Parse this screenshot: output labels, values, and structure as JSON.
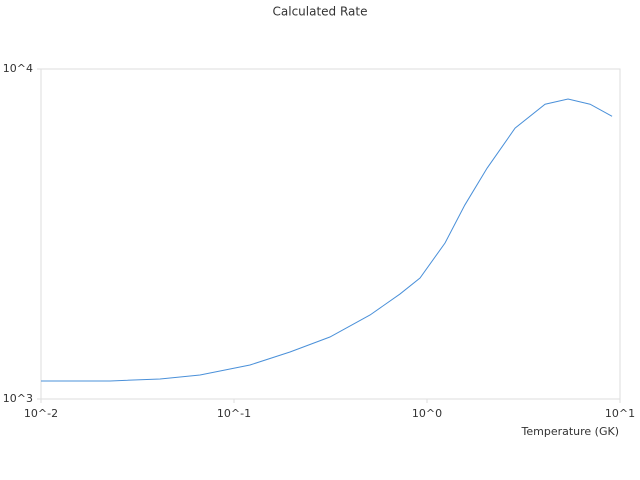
{
  "chart_data": {
    "type": "line",
    "title": "Calculated Rate",
    "x_label": "Temperature (GK)",
    "x_log": true,
    "y_log": true,
    "grid": false,
    "xlim": [
      0.01,
      10
    ],
    "ylim": [
      1000,
      10000
    ],
    "xticks": [
      {
        "value": 0.01,
        "label": "10^-2"
      },
      {
        "value": 0.1,
        "label": "10^-1"
      },
      {
        "value": 1,
        "label": "10^0"
      },
      {
        "value": 10,
        "label": "10^1"
      }
    ],
    "yticks": [
      {
        "value": 1000,
        "label": "10^3"
      },
      {
        "value": 10000,
        "label": "10^4"
      }
    ],
    "series": [
      {
        "color": "#4a90d9",
        "x": [
          0.01,
          0.0228,
          0.0414,
          0.0667,
          0.121,
          0.195,
          0.314,
          0.507,
          0.724,
          0.92,
          1.24,
          1.57,
          2.05,
          2.86,
          4.09,
          5.38,
          7.0,
          9.1
        ],
        "values": [
          1134,
          1134,
          1150,
          1182,
          1268,
          1388,
          1541,
          1797,
          2080,
          2326,
          2970,
          3870,
          5010,
          6620,
          7820,
          8110,
          7820,
          7190
        ]
      }
    ]
  }
}
